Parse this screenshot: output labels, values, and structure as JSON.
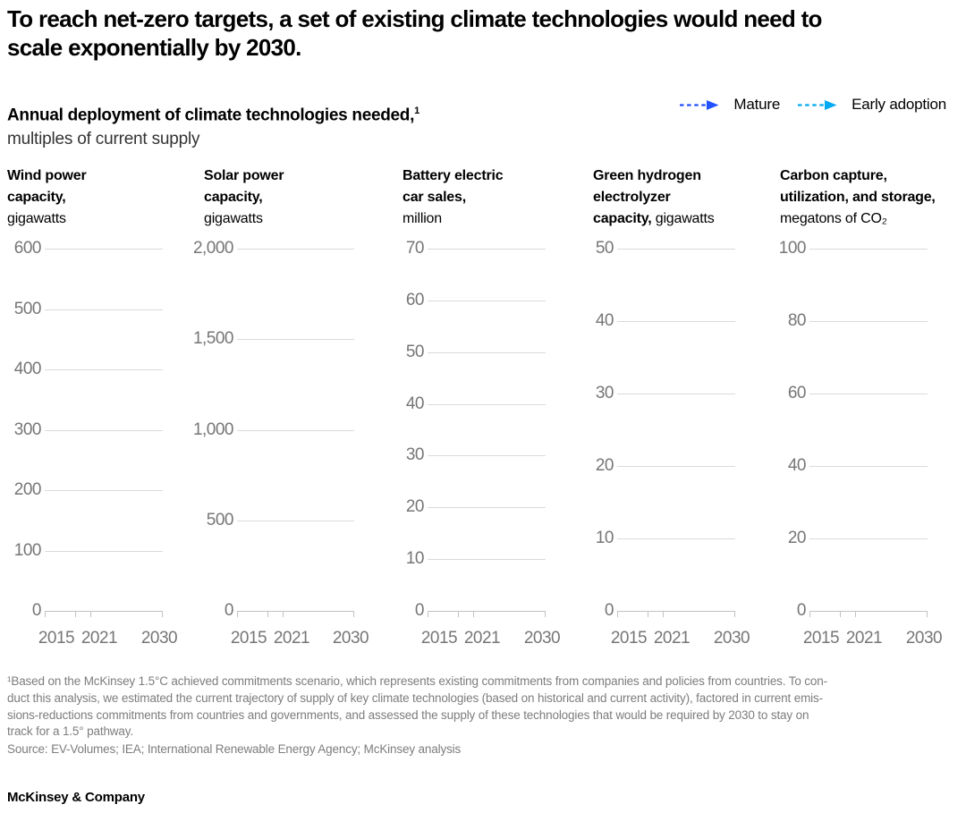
{
  "title": "To reach net-zero targets, a set of existing climate technologies would need to\nscale exponentially by 2030.",
  "subtitle": {
    "bold": "Annual deployment of climate technologies needed,",
    "footnote_marker": "1",
    "unit_line": "multiples of current supply"
  },
  "legend": [
    {
      "label": "Mature",
      "color": "#2251ff",
      "style": "dashed-arrow"
    },
    {
      "label": "Early adoption",
      "color": "#00a9f4",
      "style": "dashed-arrow"
    }
  ],
  "chart_data": [
    {
      "type": "line",
      "grid": true,
      "title": "Wind power capacity,",
      "unit": "gigawatts",
      "header_lines": [
        [
          {
            "t": "Wind power",
            "b": true
          }
        ],
        [
          {
            "t": "capacity,",
            "b": true
          }
        ],
        [
          {
            "t": "gigawatts",
            "b": false
          }
        ]
      ],
      "ylim": [
        0,
        600
      ],
      "y_ticks": [
        {
          "label": "600",
          "value": 600
        },
        {
          "label": "500",
          "value": 500
        },
        {
          "label": "400",
          "value": 400
        },
        {
          "label": "300",
          "value": 300
        },
        {
          "label": "200",
          "value": 200
        },
        {
          "label": "100",
          "value": 100
        },
        {
          "label": "0",
          "value": 0
        }
      ],
      "x_tick_labels": [
        "2015",
        "2021",
        "2030"
      ],
      "x_range": [
        2015,
        2030
      ],
      "series": []
    },
    {
      "type": "line",
      "grid": true,
      "title": "Solar power capacity,",
      "unit": "gigawatts",
      "header_lines": [
        [
          {
            "t": "Solar power",
            "b": true
          }
        ],
        [
          {
            "t": "capacity,",
            "b": true
          }
        ],
        [
          {
            "t": "gigawatts",
            "b": false
          }
        ]
      ],
      "ylim": [
        0,
        2000
      ],
      "y_ticks": [
        {
          "label": "2,000",
          "value": 2000
        },
        {
          "label": "1,500",
          "value": 1500
        },
        {
          "label": "1,000",
          "value": 1000
        },
        {
          "label": "500",
          "value": 500
        },
        {
          "label": "0",
          "value": 0
        }
      ],
      "x_tick_labels": [
        "2015",
        "2021",
        "2030"
      ],
      "x_range": [
        2015,
        2030
      ],
      "series": []
    },
    {
      "type": "line",
      "grid": true,
      "title": "Battery electric car sales,",
      "unit": "million",
      "header_lines": [
        [
          {
            "t": "Battery electric",
            "b": true
          }
        ],
        [
          {
            "t": "car sales,",
            "b": true
          }
        ],
        [
          {
            "t": "million",
            "b": false
          }
        ]
      ],
      "ylim": [
        0,
        70
      ],
      "y_ticks": [
        {
          "label": "70",
          "value": 70
        },
        {
          "label": "60",
          "value": 60
        },
        {
          "label": "50",
          "value": 50
        },
        {
          "label": "40",
          "value": 40
        },
        {
          "label": "30",
          "value": 30
        },
        {
          "label": "20",
          "value": 20
        },
        {
          "label": "10",
          "value": 10
        },
        {
          "label": "0",
          "value": 0
        }
      ],
      "x_tick_labels": [
        "2015",
        "2021",
        "2030"
      ],
      "x_range": [
        2015,
        2030
      ],
      "series": []
    },
    {
      "type": "line",
      "grid": true,
      "title": "Green hydrogen electrolyzer capacity,",
      "unit": "gigawatts",
      "header_lines": [
        [
          {
            "t": "Green hydrogen",
            "b": true
          }
        ],
        [
          {
            "t": "electrolyzer",
            "b": true
          }
        ],
        [
          {
            "t": "capacity,",
            "b": true
          },
          {
            "t": " gigawatts",
            "b": false
          }
        ]
      ],
      "ylim": [
        0,
        50
      ],
      "y_ticks": [
        {
          "label": "50",
          "value": 50
        },
        {
          "label": "40",
          "value": 40
        },
        {
          "label": "30",
          "value": 30
        },
        {
          "label": "20",
          "value": 20
        },
        {
          "label": "10",
          "value": 10
        },
        {
          "label": "0",
          "value": 0
        }
      ],
      "x_tick_labels": [
        "2015",
        "2021",
        "2030"
      ],
      "x_range": [
        2015,
        2030
      ],
      "series": []
    },
    {
      "type": "line",
      "grid": true,
      "title": "Carbon capture, utilization, and storage,",
      "unit": "megatons of CO₂",
      "header_lines": [
        [
          {
            "t": "Carbon capture,",
            "b": true
          }
        ],
        [
          {
            "t": "utilization, and storage,",
            "b": true
          }
        ],
        [
          {
            "t": "megatons of CO₂",
            "b": false
          }
        ]
      ],
      "ylim": [
        0,
        100
      ],
      "y_ticks": [
        {
          "label": "100",
          "value": 100
        },
        {
          "label": "80",
          "value": 80
        },
        {
          "label": "60",
          "value": 60
        },
        {
          "label": "40",
          "value": 40
        },
        {
          "label": "20",
          "value": 20
        },
        {
          "label": "0",
          "value": 0
        }
      ],
      "x_tick_labels": [
        "2015",
        "2021",
        "2030"
      ],
      "x_range": [
        2015,
        2030
      ],
      "series": []
    }
  ],
  "footnote": "¹Based on the McKinsey 1.5°C achieved commitments scenario, which represents existing commitments from companies and policies from countries. To con-\nduct this analysis, we estimated the current trajectory of supply of key climate technologies (based on historical and current activity), factored in current emis-\nsions-reductions commitments from countries and governments, and assessed the supply of these technologies that would be required by 2030 to stay on\ntrack for a 1.5° pathway.",
  "source": "Source: EV-Volumes; IEA; International Renewable Energy Agency; McKinsey analysis",
  "brand": "McKinsey & Company"
}
